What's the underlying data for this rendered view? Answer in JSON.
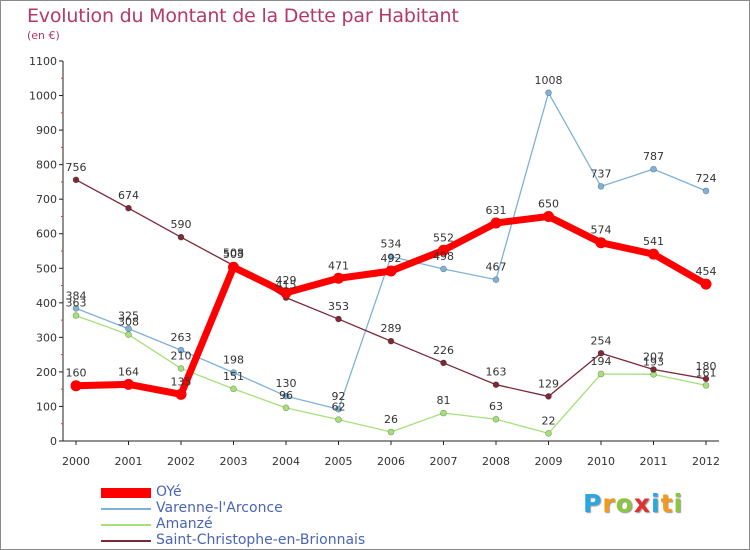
{
  "header": {
    "title": "Evolution du Montant de la Dette par Habitant",
    "subtitle": "(en €)"
  },
  "chart_data": {
    "type": "line",
    "title": "Evolution du Montant de la Dette par Habitant",
    "subtitle": "(en €)",
    "xlabel": "",
    "ylabel": "",
    "x": [
      "2000",
      "2001",
      "2002",
      "2003",
      "2004",
      "2005",
      "2006",
      "2007",
      "2008",
      "2009",
      "2010",
      "2011",
      "2012"
    ],
    "ylim": [
      0,
      1100
    ],
    "yticks": [
      0,
      100,
      200,
      300,
      400,
      500,
      600,
      700,
      800,
      900,
      1000,
      1100
    ],
    "grid": false,
    "legend_position": "bottom-left",
    "series": [
      {
        "name": "OYé",
        "color": "#ff0000",
        "values": [
          160,
          164,
          135,
          503,
          429,
          471,
          492,
          552,
          631,
          650,
          574,
          541,
          454
        ]
      },
      {
        "name": "Varenne-l'Arconce",
        "color": "#7fb2d8",
        "values": [
          384,
          325,
          263,
          198,
          130,
          92,
          534,
          498,
          467,
          1008,
          737,
          787,
          724
        ]
      },
      {
        "name": "Amanzé",
        "color": "#a6e07a",
        "values": [
          363,
          308,
          210,
          151,
          96,
          62,
          26,
          81,
          63,
          22,
          194,
          193,
          161
        ]
      },
      {
        "name": "Saint-Christophe-en-Brionnais",
        "color": "#7b2a36",
        "values": [
          756,
          674,
          590,
          508,
          415,
          353,
          289,
          226,
          163,
          129,
          254,
          207,
          180
        ]
      }
    ]
  },
  "logo": {
    "letters": [
      "P",
      "r",
      "o",
      "x",
      "i",
      "t",
      "i"
    ],
    "colors": [
      "#2aa6e0",
      "#f29a1f",
      "#8cc63f",
      "#e0312f",
      "#2aa6e0",
      "#f29a1f",
      "#8cc63f"
    ]
  }
}
